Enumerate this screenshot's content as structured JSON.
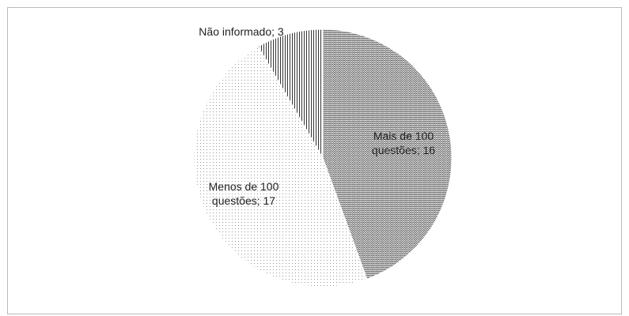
{
  "chart_data": {
    "type": "pie",
    "categories": [
      "Mais de 100 questões",
      "Menos de 100 questões",
      "Não informado"
    ],
    "values": [
      16,
      17,
      3
    ],
    "value_labels": [
      "Mais de 100 questões; 16",
      "Menos de 100 questões; 17",
      "Não informado; 3"
    ]
  }
}
